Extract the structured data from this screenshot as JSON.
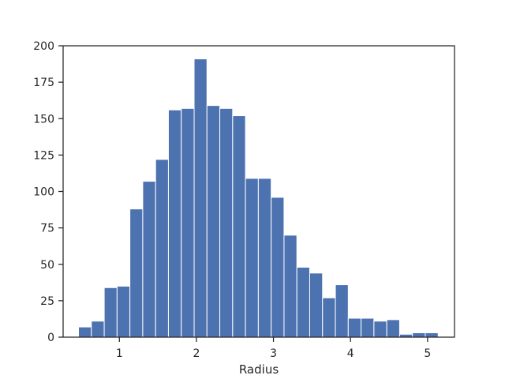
{
  "chart_data": {
    "type": "bar",
    "title": "",
    "xlabel": "Radius",
    "ylabel": "",
    "bar_color": "#4c72b0",
    "edge_color": "#ffffff",
    "axis_color": "#262626",
    "grid": false,
    "xlim": [
      0.27,
      5.35
    ],
    "ylim": [
      0,
      200
    ],
    "xticks": [
      1,
      2,
      3,
      4,
      5
    ],
    "yticks": [
      0,
      25,
      50,
      75,
      100,
      125,
      150,
      175,
      200
    ],
    "bin_start": 0.47,
    "bin_width": 0.1667,
    "values": [
      7,
      11,
      34,
      35,
      88,
      107,
      122,
      156,
      157,
      191,
      159,
      157,
      152,
      109,
      109,
      96,
      70,
      48,
      44,
      27,
      36,
      13,
      13,
      11,
      12,
      2,
      3,
      3
    ]
  }
}
